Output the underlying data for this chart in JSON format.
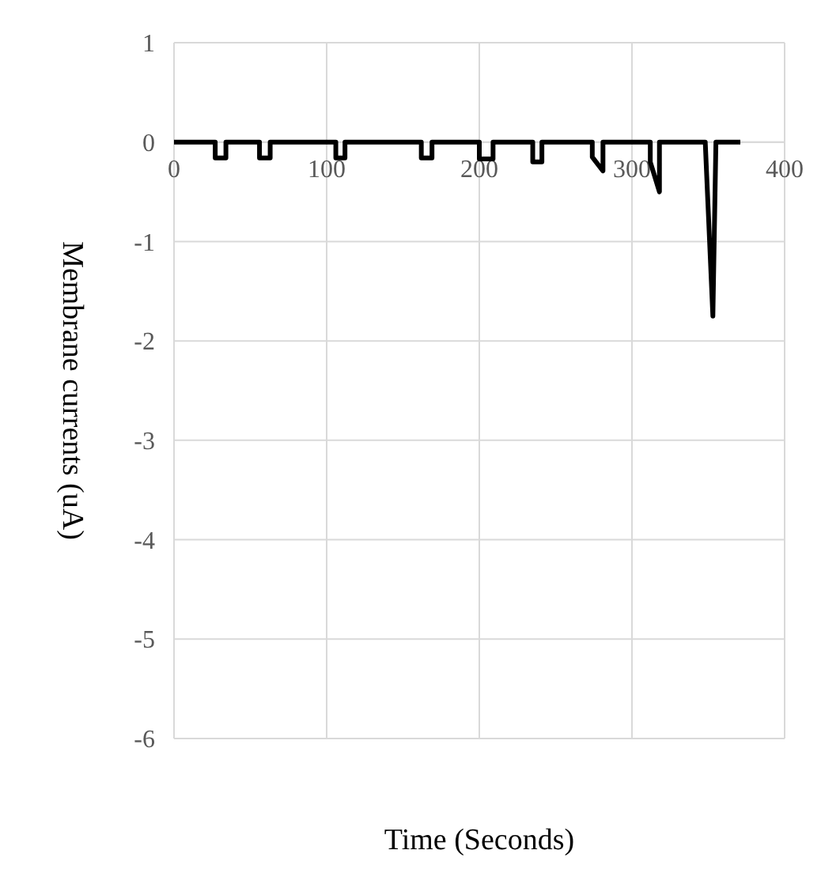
{
  "chart_data": {
    "type": "line",
    "xlabel": "Time (Seconds)",
    "ylabel": "Membrane currents (uA)",
    "xlim": [
      0,
      400
    ],
    "xticks": [
      0,
      100,
      200,
      300,
      400
    ],
    "ylim": [
      -6,
      1
    ],
    "yticks": [
      1,
      0,
      -1,
      -2,
      -3,
      -4,
      -5,
      -6
    ],
    "grid": true,
    "line_style": "solid",
    "series": [
      {
        "color": "#000000",
        "x": [
          0,
          27,
          27,
          34,
          34,
          56,
          56,
          63,
          63,
          106,
          106,
          112,
          112,
          162,
          162,
          169,
          169,
          200,
          200,
          209,
          209,
          235,
          235,
          241,
          241,
          274,
          274,
          281,
          281,
          312,
          312,
          318,
          318,
          348,
          353,
          355,
          371
        ],
        "values": [
          0,
          0,
          -0.16,
          -0.16,
          0,
          0,
          -0.16,
          -0.16,
          0,
          0,
          -0.16,
          -0.16,
          0,
          0,
          -0.16,
          -0.16,
          0,
          0,
          -0.17,
          -0.17,
          0,
          0,
          -0.2,
          -0.2,
          0,
          0,
          -0.15,
          -0.29,
          0,
          0,
          -0.2,
          -0.5,
          0,
          0,
          -1.75,
          0,
          0
        ]
      }
    ]
  }
}
